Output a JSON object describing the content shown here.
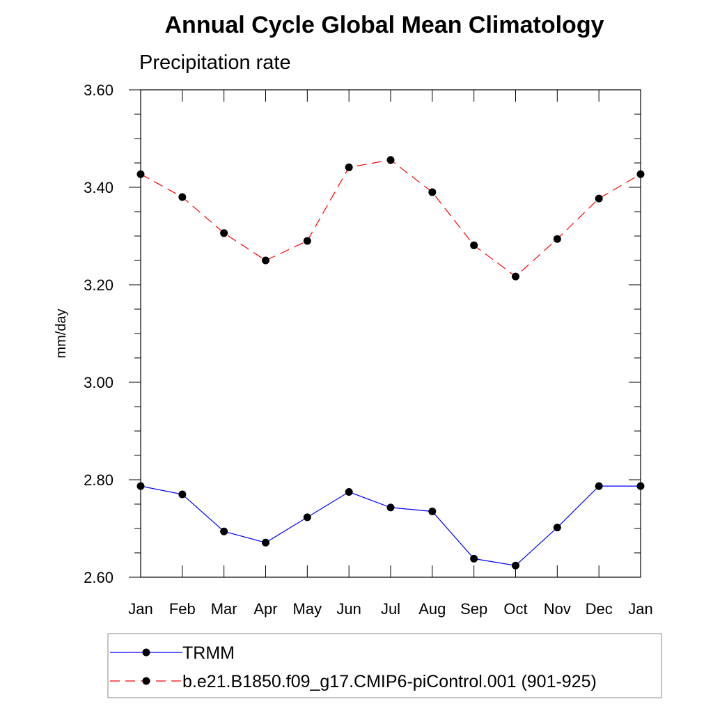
{
  "chart_data": {
    "type": "line",
    "title": "Annual Cycle Global Mean Climatology",
    "subtitle": "Precipitation rate",
    "xlabel": "",
    "ylabel": "mm/day",
    "categories": [
      "Jan",
      "Feb",
      "Mar",
      "Apr",
      "May",
      "Jun",
      "Jul",
      "Aug",
      "Sep",
      "Oct",
      "Nov",
      "Dec",
      "Jan"
    ],
    "ylim": [
      2.6,
      3.6
    ],
    "yticks": [
      2.6,
      2.8,
      3.0,
      3.2,
      3.4,
      3.6
    ],
    "ytick_labels": [
      "2.60",
      "2.80",
      "3.00",
      "3.20",
      "3.40",
      "3.60"
    ],
    "grid": false,
    "legend_position": "bottom",
    "series": [
      {
        "name": "TRMM",
        "color": "#0000ff",
        "line_style": "solid",
        "marker": "filled-circle",
        "values": [
          2.787,
          2.77,
          2.694,
          2.671,
          2.723,
          2.775,
          2.743,
          2.735,
          2.638,
          2.624,
          2.702,
          2.787,
          2.787
        ]
      },
      {
        "name": "b.e21.B1850.f09_g17.CMIP6-piControl.001 (901-925)",
        "color": "#ff0000",
        "line_style": "dashed",
        "marker": "filled-circle",
        "values": [
          3.427,
          3.38,
          3.306,
          3.25,
          3.29,
          3.441,
          3.456,
          3.39,
          3.281,
          3.217,
          3.294,
          3.377,
          3.427
        ]
      }
    ]
  }
}
